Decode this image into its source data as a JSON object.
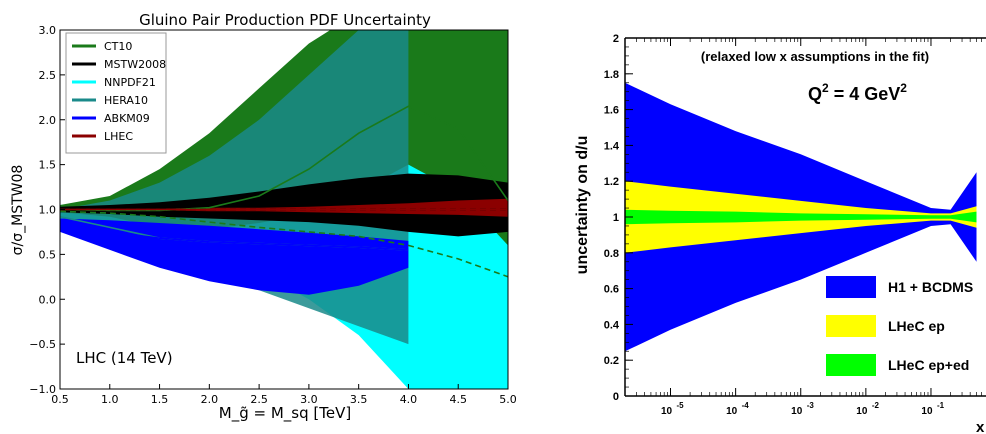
{
  "chart_data": [
    {
      "type": "area",
      "title": "Gluino Pair Production PDF Uncertainty",
      "xlabel": "M_g̃ = M_sq [TeV]",
      "ylabel": "σ/σ_MSTW08",
      "xlim": [
        0.5,
        5.0
      ],
      "ylim": [
        -1.0,
        3.0
      ],
      "xticks": [
        "0.5",
        "1.0",
        "1.5",
        "2.0",
        "2.5",
        "3.0",
        "3.5",
        "4.0",
        "4.5",
        "5.0"
      ],
      "yticks": [
        "−1.0",
        "−0.5",
        "0.0",
        "0.5",
        "1.0",
        "1.5",
        "2.0",
        "2.5",
        "3.0"
      ],
      "annotation": "LHC (14 TeV)",
      "legend_position": "top-left",
      "series": [
        {
          "name": "CT10",
          "color": "#1a7a1a",
          "x": [
            0.5,
            1.0,
            1.5,
            2.0,
            2.5,
            3.0,
            3.5,
            4.0,
            4.5,
            5.0
          ],
          "central": [
            1.0,
            0.99,
            0.99,
            1.02,
            1.15,
            1.45,
            1.85,
            2.15,
            1.9,
            1.1
          ],
          "upper": [
            1.05,
            1.15,
            1.45,
            1.85,
            2.35,
            2.85,
            3.2,
            3.5,
            3.6,
            3.6
          ],
          "lower": [
            0.97,
            0.92,
            0.8,
            0.78,
            0.85,
            0.95,
            1.2,
            1.5,
            1.2,
            0.6
          ]
        },
        {
          "name": "MSTW2008",
          "color": "#000000",
          "x": [
            0.5,
            1.0,
            1.5,
            2.0,
            2.5,
            3.0,
            3.5,
            4.0,
            4.5,
            5.0
          ],
          "central": [
            1.0,
            1.0,
            1.0,
            1.0,
            1.0,
            1.0,
            1.0,
            1.0,
            1.0,
            1.0
          ],
          "upper": [
            1.03,
            1.05,
            1.08,
            1.13,
            1.2,
            1.28,
            1.35,
            1.4,
            1.38,
            1.3
          ],
          "lower": [
            0.97,
            0.95,
            0.92,
            0.9,
            0.88,
            0.86,
            0.82,
            0.75,
            0.7,
            0.75
          ]
        },
        {
          "name": "NNPDF21",
          "color": "#00ffff",
          "x": [
            0.5,
            1.0,
            1.5,
            2.0,
            2.5,
            3.0,
            3.5,
            4.0,
            4.5,
            5.0
          ],
          "central": [
            0.98,
            0.96,
            0.92,
            0.86,
            0.8,
            0.75,
            0.7,
            0.6,
            0.45,
            0.25
          ],
          "upper": [
            1.05,
            1.1,
            1.2,
            1.4,
            1.65,
            2.0,
            2.5,
            3.2,
            3.6,
            3.6
          ],
          "lower": [
            0.9,
            0.8,
            0.65,
            0.5,
            0.3,
            0.0,
            -0.4,
            -1.0,
            -1.0,
            -1.0
          ]
        },
        {
          "name": "HERA10",
          "color": "#1a8a8a",
          "x": [
            0.5,
            1.0,
            1.5,
            2.0,
            2.5,
            3.0,
            3.5,
            4.0
          ],
          "central": [
            0.92,
            0.8,
            0.68,
            0.64,
            0.62,
            0.6,
            0.58,
            0.55
          ],
          "upper": [
            1.0,
            1.1,
            1.3,
            1.6,
            2.0,
            2.5,
            3.0,
            3.6
          ],
          "lower": [
            0.85,
            0.6,
            0.4,
            0.25,
            0.1,
            -0.1,
            -0.3,
            -0.5
          ]
        },
        {
          "name": "ABKM09",
          "color": "#0000ff",
          "x": [
            0.5,
            1.0,
            1.5,
            2.0,
            2.5,
            3.0,
            3.5,
            4.0
          ],
          "central": [
            0.85,
            0.75,
            0.68,
            0.64,
            0.62,
            0.6,
            0.58,
            0.55
          ],
          "upper": [
            0.9,
            0.88,
            0.85,
            0.82,
            0.78,
            0.74,
            0.7,
            0.65
          ],
          "lower": [
            0.75,
            0.55,
            0.35,
            0.2,
            0.1,
            0.05,
            0.15,
            0.35
          ]
        },
        {
          "name": "LHEC",
          "color": "#8b0000",
          "x": [
            0.5,
            1.0,
            1.5,
            2.0,
            2.5,
            3.0,
            3.5,
            4.0,
            4.5,
            5.0
          ],
          "central": [
            1.0,
            1.0,
            1.0,
            1.0,
            1.0,
            1.0,
            1.0,
            1.0,
            1.0,
            1.0
          ],
          "upper": [
            1.01,
            1.01,
            1.01,
            1.02,
            1.02,
            1.03,
            1.05,
            1.07,
            1.1,
            1.12
          ],
          "lower": [
            0.99,
            0.99,
            0.99,
            0.98,
            0.98,
            0.97,
            0.96,
            0.95,
            0.94,
            0.92
          ]
        }
      ]
    },
    {
      "type": "area",
      "title": "(relaxed low x assumptions in the fit)",
      "xlabel": "x",
      "ylabel": "uncertainty on d/u",
      "x_scale": "log",
      "xlim": [
        2e-06,
        0.7
      ],
      "ylim": [
        0,
        2
      ],
      "xticks": [
        "10",
        "10",
        "10",
        "10",
        "10"
      ],
      "xtick_exponents": [
        "-5",
        "-4",
        "-3",
        "-2",
        "-1"
      ],
      "yticks": [
        "0",
        "0.2",
        "0.4",
        "0.6",
        "0.8",
        "1",
        "1.2",
        "1.4",
        "1.6",
        "1.8",
        "2"
      ],
      "annotation": "Q² = 4 GeV²",
      "annotation_base": "Q",
      "annotation_sup1": "2",
      "annotation_mid": " = 4 GeV",
      "annotation_sup2": "2",
      "legend_position": "bottom-right",
      "series": [
        {
          "name": "H1 + BCDMS",
          "color": "#0000ff",
          "x": [
            2e-06,
            1e-05,
            0.0001,
            0.001,
            0.01,
            0.1,
            0.2,
            0.5
          ],
          "upper": [
            1.75,
            1.63,
            1.48,
            1.35,
            1.2,
            1.05,
            1.04,
            1.25
          ],
          "lower": [
            0.25,
            0.37,
            0.52,
            0.65,
            0.8,
            0.95,
            0.96,
            0.75
          ]
        },
        {
          "name": "LHeC ep",
          "color": "#ffff00",
          "x": [
            2e-06,
            1e-05,
            0.0001,
            0.001,
            0.01,
            0.1,
            0.2,
            0.5
          ],
          "upper": [
            1.2,
            1.17,
            1.13,
            1.09,
            1.05,
            1.02,
            1.02,
            1.06
          ],
          "lower": [
            0.8,
            0.83,
            0.87,
            0.91,
            0.95,
            0.98,
            0.98,
            0.94
          ]
        },
        {
          "name": "LHeC ep+ed",
          "color": "#00ff00",
          "x": [
            2e-06,
            1e-05,
            0.0001,
            0.001,
            0.01,
            0.1,
            0.2,
            0.5
          ],
          "upper": [
            1.04,
            1.035,
            1.03,
            1.02,
            1.015,
            1.01,
            1.01,
            1.03
          ],
          "lower": [
            0.96,
            0.965,
            0.97,
            0.98,
            0.985,
            0.99,
            0.99,
            0.97
          ]
        }
      ]
    }
  ]
}
